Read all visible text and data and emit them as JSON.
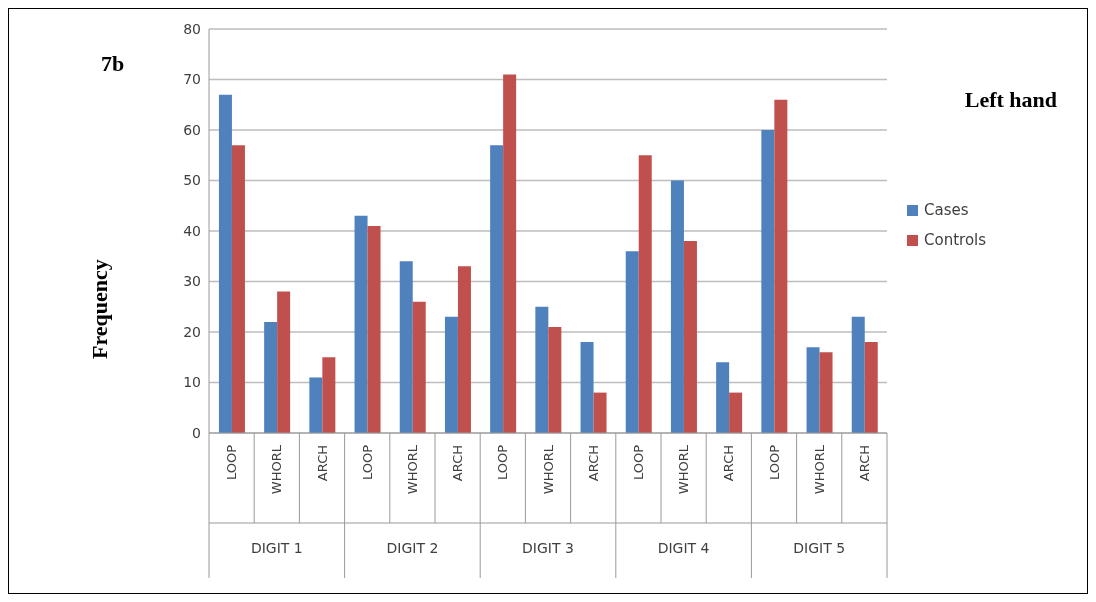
{
  "chart_data": {
    "type": "bar",
    "title": "Left hand",
    "ylabel": "Frequency",
    "annotations": [
      "7b",
      "DIGIT 1",
      "DIGIT 2",
      "DIGIT 3",
      "DIGIT 4",
      "DIGIT 5"
    ],
    "categories": [
      "LOOP",
      "WHORL",
      "ARCH",
      "LOOP",
      "WHORL",
      "ARCH",
      "LOOP",
      "WHORL",
      "ARCH",
      "LOOP",
      "WHORL",
      "ARCH",
      "LOOP",
      "WHORL",
      "ARCH"
    ],
    "series": [
      {
        "name": "Cases",
        "color": "#4f81bd",
        "values": [
          67,
          22,
          11,
          43,
          34,
          23,
          57,
          25,
          18,
          36,
          50,
          14,
          60,
          17,
          23
        ]
      },
      {
        "name": "Controls",
        "color": "#c0504d",
        "values": [
          57,
          28,
          15,
          41,
          26,
          33,
          71,
          21,
          8,
          55,
          38,
          8,
          66,
          16,
          18
        ]
      }
    ],
    "ylim": [
      0,
      80
    ],
    "yticks": [
      0,
      10,
      20,
      30,
      40,
      50,
      60,
      70,
      80
    ],
    "grid": "y",
    "legend": "right"
  }
}
